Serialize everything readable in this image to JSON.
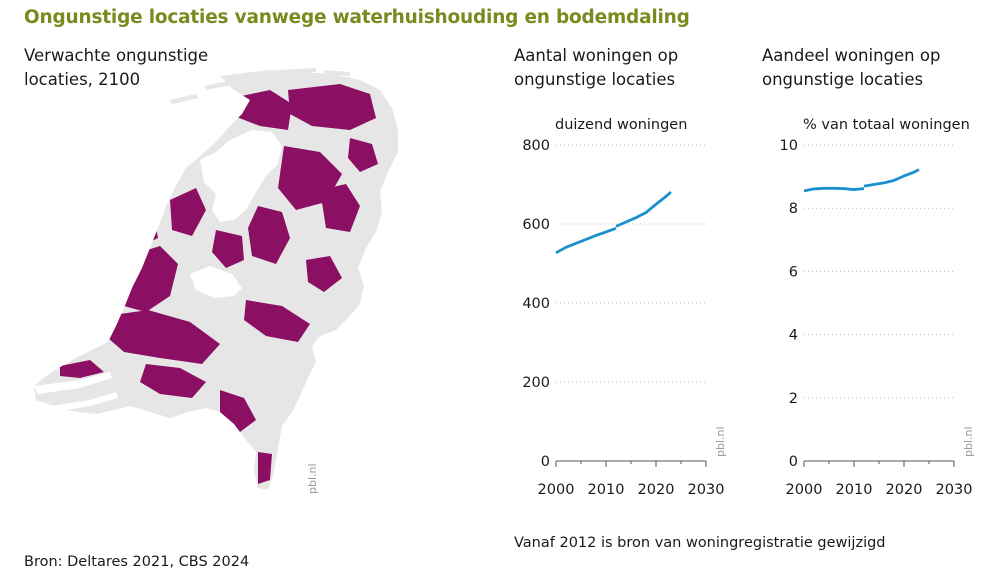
{
  "title": "Ongunstige locaties vanwege waterhuishouding en bodemdaling",
  "map": {
    "subtitle_line1": "Verwachte ongunstige",
    "subtitle_line2": "locaties, 2100",
    "watermark": "pbl.nl",
    "land_color": "#e6e6e6",
    "highlight_color": "#8b0f63"
  },
  "chart_data": [
    {
      "type": "line",
      "title_line1": "Aantal woningen op",
      "title_line2": "ongunstige locaties",
      "ylabel": "duizend woningen",
      "xlim": [
        2000,
        2030
      ],
      "ylim": [
        0,
        800
      ],
      "xticks": [
        "2000",
        "2010",
        "2020",
        "2030"
      ],
      "yticks": [
        "0",
        "200",
        "400",
        "600",
        "800"
      ],
      "watermark": "pbl.nl",
      "color": "#1a8fce",
      "series": [
        {
          "name": "",
          "x": [
            2000,
            2002,
            2004,
            2006,
            2008,
            2010,
            2012
          ],
          "y": [
            527,
            541,
            551,
            561,
            571,
            580,
            589
          ]
        },
        {
          "name": "",
          "x": [
            2012,
            2014,
            2016,
            2018,
            2020,
            2022,
            2023
          ],
          "y": [
            594,
            605,
            616,
            629,
            650,
            670,
            681
          ]
        }
      ]
    },
    {
      "type": "line",
      "title_line1": "Aandeel woningen op",
      "title_line2": "ongunstige locaties",
      "ylabel": "% van totaal woningen",
      "xlim": [
        2000,
        2030
      ],
      "ylim": [
        0,
        10
      ],
      "xticks": [
        "2000",
        "2010",
        "2020",
        "2030"
      ],
      "yticks": [
        "0",
        "2",
        "4",
        "6",
        "8",
        "10"
      ],
      "watermark": "pbl.nl",
      "color": "#1a8fce",
      "series": [
        {
          "name": "",
          "x": [
            2000,
            2002,
            2004,
            2006,
            2008,
            2010,
            2012
          ],
          "y": [
            8.55,
            8.61,
            8.63,
            8.63,
            8.62,
            8.59,
            8.62
          ]
        },
        {
          "name": "",
          "x": [
            2012,
            2014,
            2016,
            2018,
            2020,
            2022,
            2023
          ],
          "y": [
            8.7,
            8.75,
            8.8,
            8.88,
            9.02,
            9.14,
            9.22
          ]
        }
      ]
    }
  ],
  "note": "Vanaf 2012 is bron van woningregistratie gewijzigd",
  "source": "Bron: Deltares 2021, CBS 2024"
}
